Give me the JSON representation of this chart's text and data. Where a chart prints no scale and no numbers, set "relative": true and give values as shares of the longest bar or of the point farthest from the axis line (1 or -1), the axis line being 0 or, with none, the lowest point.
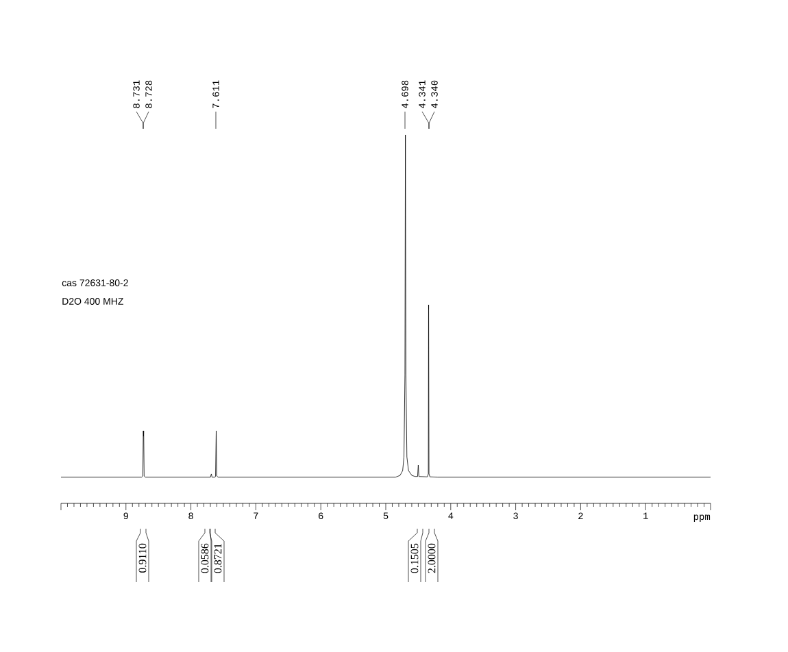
{
  "chart_data": {
    "type": "line",
    "relative": true,
    "xlabel": "ppm",
    "xlim": [
      10,
      0
    ],
    "xticks": [
      {
        "value": 10,
        "label": null
      },
      9,
      8,
      7,
      6,
      5,
      4,
      3,
      2,
      1,
      {
        "value": 0,
        "label": null
      }
    ],
    "x": [
      10,
      8.76,
      8.74,
      8.733,
      8.7295,
      8.727,
      8.72,
      8.7,
      7.7,
      7.685,
      7.675,
      7.63,
      7.62,
      7.611,
      7.6,
      7.58,
      4.85,
      4.78,
      4.74,
      4.72,
      4.705,
      4.698,
      4.69,
      4.675,
      4.65,
      4.6,
      4.55,
      4.51,
      4.5,
      4.49,
      4.36,
      4.345,
      4.341,
      4.3405,
      4.34,
      4.335,
      4.32,
      4.2,
      0
    ],
    "series": [
      {
        "color": "#000000",
        "values": [
          0.071,
          0.071,
          0.074,
          0.197,
          0.182,
          0.197,
          0.074,
          0.071,
          0.071,
          0.08,
          0.071,
          0.071,
          0.074,
          0.197,
          0.074,
          0.071,
          0.071,
          0.076,
          0.089,
          0.126,
          0.349,
          1,
          0.349,
          0.126,
          0.089,
          0.076,
          0.073,
          0.073,
          0.104,
          0.073,
          0.072,
          0.08,
          0.539,
          0.526,
          0.539,
          0.08,
          0.072,
          0.071,
          0.071
        ]
      }
    ],
    "annotations": [
      "8.731",
      "8.728",
      "7.611",
      "4.698",
      "4.341",
      "4.340",
      "0.9110",
      "0.0586",
      "0.8721",
      "0.1505",
      "2.0000",
      "cas 72631-80-2",
      "D2O 400 MHZ"
    ]
  }
}
